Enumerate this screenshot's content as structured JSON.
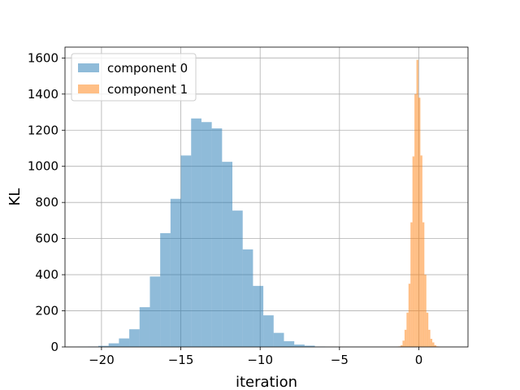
{
  "chart_data": {
    "type": "bar",
    "xlabel": "iteration",
    "ylabel": "KL",
    "xlim": [
      -22.3,
      3.1
    ],
    "ylim": [
      0,
      1660
    ],
    "grid": true,
    "legend_position": "top-left",
    "x_ticks": [
      -20,
      -15,
      -10,
      -5,
      0
    ],
    "x_tick_labels": [
      "−20",
      "−15",
      "−10",
      "−5",
      "0"
    ],
    "y_ticks": [
      0,
      200,
      400,
      600,
      800,
      1000,
      1200,
      1400,
      1600
    ],
    "y_tick_labels": [
      "0",
      "200",
      "400",
      "600",
      "800",
      "1000",
      "1200",
      "1400",
      "1600"
    ],
    "series": [
      {
        "name": "component 0",
        "color": "#1f77b4",
        "opacity": 0.5,
        "bins": [
          {
            "x0": -21.5,
            "x1": -20.85,
            "count": 1
          },
          {
            "x0": -20.85,
            "x1": -20.2,
            "count": 2
          },
          {
            "x0": -20.2,
            "x1": -19.55,
            "count": 6
          },
          {
            "x0": -19.55,
            "x1": -18.9,
            "count": 20
          },
          {
            "x0": -18.9,
            "x1": -18.25,
            "count": 47
          },
          {
            "x0": -18.25,
            "x1": -17.6,
            "count": 98
          },
          {
            "x0": -17.6,
            "x1": -16.95,
            "count": 220
          },
          {
            "x0": -16.95,
            "x1": -16.3,
            "count": 390
          },
          {
            "x0": -16.3,
            "x1": -15.65,
            "count": 630
          },
          {
            "x0": -15.65,
            "x1": -15.0,
            "count": 820
          },
          {
            "x0": -15.0,
            "x1": -14.35,
            "count": 1060
          },
          {
            "x0": -14.35,
            "x1": -13.7,
            "count": 1265
          },
          {
            "x0": -13.7,
            "x1": -13.05,
            "count": 1245
          },
          {
            "x0": -13.05,
            "x1": -12.4,
            "count": 1210
          },
          {
            "x0": -12.4,
            "x1": -11.75,
            "count": 1025
          },
          {
            "x0": -11.75,
            "x1": -11.1,
            "count": 755
          },
          {
            "x0": -11.1,
            "x1": -10.45,
            "count": 540
          },
          {
            "x0": -10.45,
            "x1": -9.8,
            "count": 338
          },
          {
            "x0": -9.8,
            "x1": -9.15,
            "count": 175
          },
          {
            "x0": -9.15,
            "x1": -8.5,
            "count": 78
          },
          {
            "x0": -8.5,
            "x1": -7.85,
            "count": 32
          },
          {
            "x0": -7.85,
            "x1": -7.2,
            "count": 13
          },
          {
            "x0": -7.2,
            "x1": -6.55,
            "count": 7
          },
          {
            "x0": -6.55,
            "x1": -5.9,
            "count": 2
          }
        ]
      },
      {
        "name": "component 1",
        "color": "#ff7f0e",
        "opacity": 0.5,
        "bins": [
          {
            "x0": -1.4,
            "x1": -1.275,
            "count": 1
          },
          {
            "x0": -1.275,
            "x1": -1.15,
            "count": 3
          },
          {
            "x0": -1.15,
            "x1": -1.025,
            "count": 9
          },
          {
            "x0": -1.025,
            "x1": -0.9,
            "count": 35
          },
          {
            "x0": -0.9,
            "x1": -0.775,
            "count": 95
          },
          {
            "x0": -0.775,
            "x1": -0.65,
            "count": 190
          },
          {
            "x0": -0.65,
            "x1": -0.525,
            "count": 350
          },
          {
            "x0": -0.525,
            "x1": -0.4,
            "count": 690
          },
          {
            "x0": -0.4,
            "x1": -0.275,
            "count": 1055
          },
          {
            "x0": -0.275,
            "x1": -0.15,
            "count": 1400
          },
          {
            "x0": -0.15,
            "x1": -0.025,
            "count": 1590
          },
          {
            "x0": -0.025,
            "x1": 0.1,
            "count": 1380
          },
          {
            "x0": 0.1,
            "x1": 0.225,
            "count": 1060
          },
          {
            "x0": 0.225,
            "x1": 0.35,
            "count": 690
          },
          {
            "x0": 0.35,
            "x1": 0.475,
            "count": 400
          },
          {
            "x0": 0.475,
            "x1": 0.6,
            "count": 190
          },
          {
            "x0": 0.6,
            "x1": 0.725,
            "count": 95
          },
          {
            "x0": 0.725,
            "x1": 0.85,
            "count": 45
          },
          {
            "x0": 0.85,
            "x1": 0.975,
            "count": 25
          },
          {
            "x0": 0.975,
            "x1": 1.1,
            "count": 10
          },
          {
            "x0": 1.1,
            "x1": 1.225,
            "count": 3
          },
          {
            "x0": 1.225,
            "x1": 1.35,
            "count": 1
          }
        ]
      }
    ]
  }
}
